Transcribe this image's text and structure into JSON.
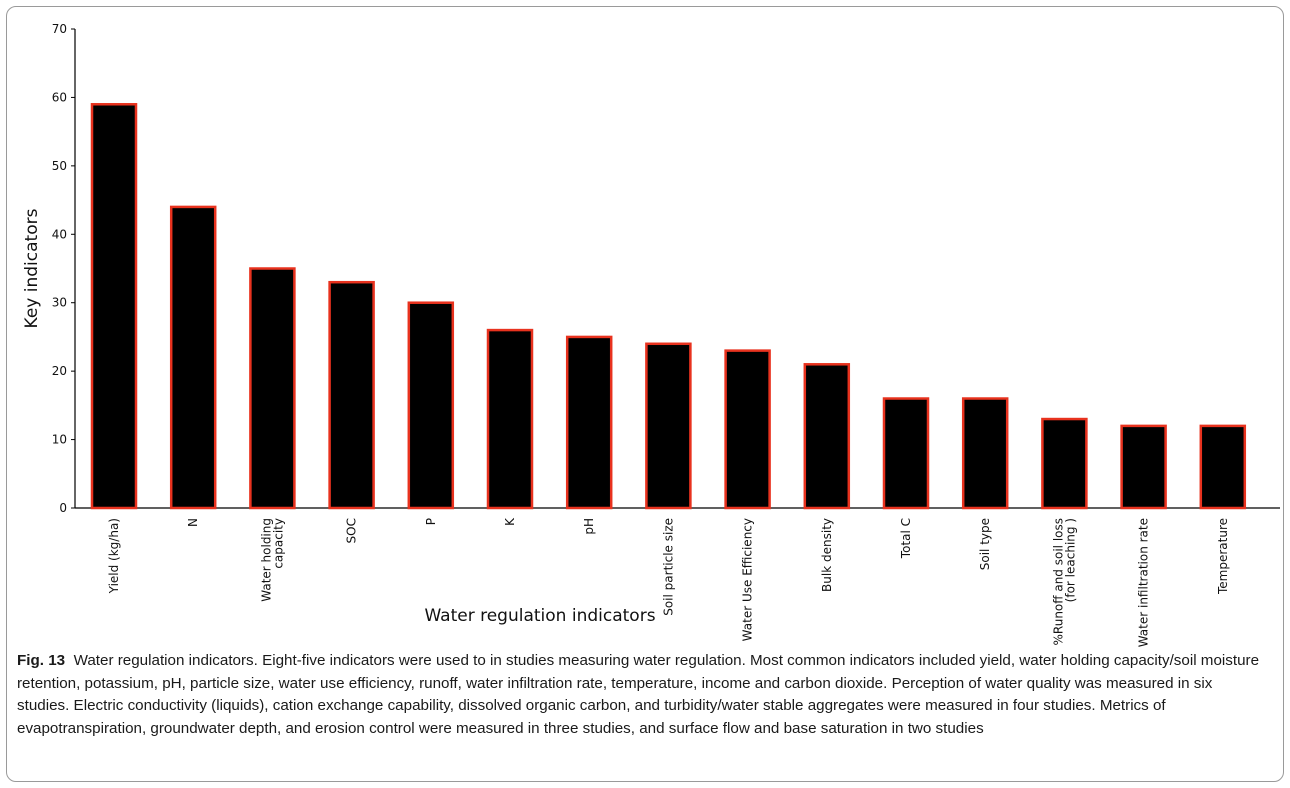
{
  "chart_data": {
    "type": "bar",
    "categories": [
      "Yield (kg/ha)",
      "N",
      "Water holding\ncapacity",
      "SOC",
      "P",
      "K",
      "pH",
      "Soil particle size",
      "Water Use Efficiency",
      "Bulk density",
      "Total C",
      "Soil type",
      "%Runoff and soil loss\n(for leaching )",
      "Water infiltration rate",
      "Temperature"
    ],
    "values": [
      59,
      44,
      35,
      33,
      30,
      26,
      25,
      24,
      23,
      21,
      16,
      16,
      13,
      12,
      12
    ],
    "xlabel": "Water regulation indicators",
    "ylabel": "Key  indicators",
    "ylim": [
      0,
      70
    ],
    "yticks": [
      0,
      10,
      20,
      30,
      40,
      50,
      60,
      70
    ],
    "grid": false,
    "bar_fill": "#000000",
    "bar_edge": "#e8321e"
  },
  "caption": {
    "label": "Fig. 13",
    "text": "Water regulation indicators. Eight-five indicators were used to in studies measuring water regulation. Most common indicators included yield, water holding capacity/soil moisture retention, potassium, pH, particle size, water use efficiency, runoff, water infiltration rate, temperature, income and carbon dioxide. Perception of water quality was measured in six studies. Electric conductivity (liquids), cation exchange capability, dissolved organic carbon, and turbidity/water stable aggregates were measured in four studies. Metrics of evapotranspiration, groundwater depth, and erosion control were measured in three studies, and surface flow and base saturation in two studies"
  }
}
